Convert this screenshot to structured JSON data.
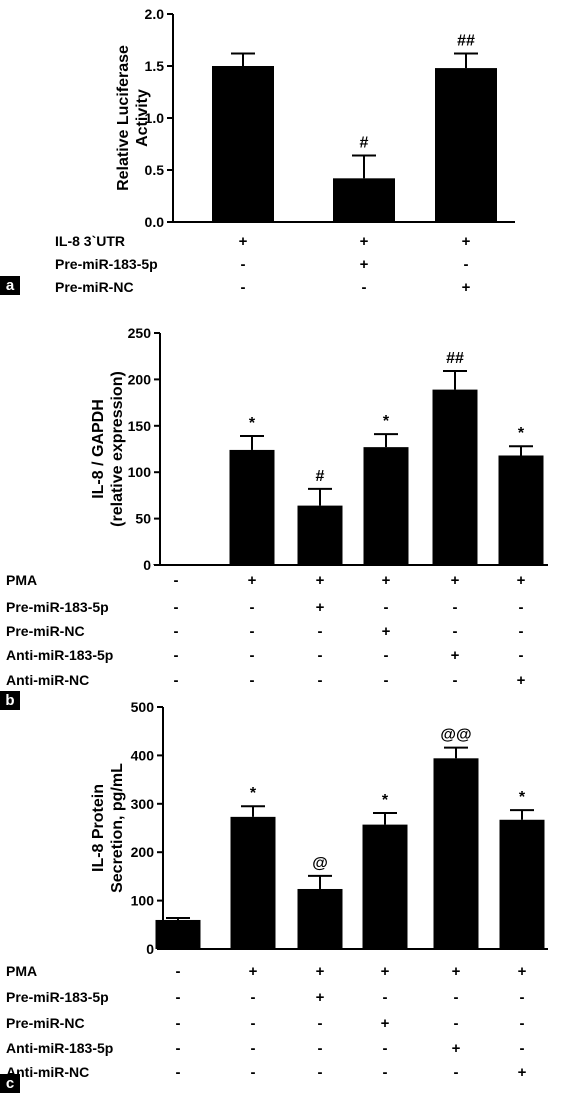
{
  "chart_data": [
    {
      "type": "bar",
      "panel": "a",
      "ylabel_lines": [
        "Relative Luciferase",
        "Activity"
      ],
      "ylim": [
        0,
        2.0
      ],
      "yticks": [
        "0.0",
        "0.5",
        "1.0",
        "1.5",
        "2.0"
      ],
      "values": [
        1.5,
        0.42,
        1.48
      ],
      "errors": [
        0.12,
        0.22,
        0.14
      ],
      "annotations": [
        "",
        "#",
        "##"
      ],
      "conditions": [
        {
          "label": "IL-8 3`UTR",
          "signs": [
            "+",
            "+",
            "+"
          ]
        },
        {
          "label": "Pre-miR-183-5p",
          "signs": [
            "-",
            "+",
            "-"
          ]
        },
        {
          "label": "Pre-miR-NC",
          "signs": [
            "-",
            "-",
            "+"
          ]
        }
      ]
    },
    {
      "type": "bar",
      "panel": "b",
      "ylabel_lines": [
        "IL-8 / GAPDH",
        "(relative expression)"
      ],
      "ylim": [
        0,
        250
      ],
      "yticks": [
        "0",
        "50",
        "100",
        "150",
        "200",
        "250"
      ],
      "values": [
        1,
        124,
        64,
        127,
        189,
        118
      ],
      "errors": [
        0,
        15,
        18,
        14,
        20,
        10
      ],
      "annotations": [
        "",
        "*",
        "#",
        "*",
        "##",
        "*"
      ],
      "conditions": [
        {
          "label": "PMA",
          "signs": [
            "-",
            "+",
            "+",
            "+",
            "+",
            "+"
          ]
        },
        {
          "label": "Pre-miR-183-5p",
          "signs": [
            "-",
            "-",
            "+",
            "-",
            "-",
            "-"
          ]
        },
        {
          "label": "Pre-miR-NC",
          "signs": [
            "-",
            "-",
            "-",
            "+",
            "-",
            "-"
          ]
        },
        {
          "label": "Anti-miR-183-5p",
          "signs": [
            "-",
            "-",
            "-",
            "-",
            "+",
            "-"
          ]
        },
        {
          "label": "Anti-miR-NC",
          "signs": [
            "-",
            "-",
            "-",
            "-",
            "-",
            "+"
          ]
        }
      ]
    },
    {
      "type": "bar",
      "panel": "c",
      "ylabel_lines": [
        "IL-8 Protein",
        "Secretion, pg/mL"
      ],
      "ylim": [
        0,
        500
      ],
      "yticks": [
        "0",
        "100",
        "200",
        "300",
        "400",
        "500"
      ],
      "values": [
        60,
        273,
        124,
        257,
        394,
        267
      ],
      "errors": [
        4,
        22,
        27,
        24,
        22,
        20
      ],
      "annotations": [
        "",
        "*",
        "@",
        "*",
        "@@",
        "*"
      ],
      "conditions": [
        {
          "label": "PMA",
          "signs": [
            "-",
            "+",
            "+",
            "+",
            "+",
            "+"
          ]
        },
        {
          "label": "Pre-miR-183-5p",
          "signs": [
            "-",
            "-",
            "+",
            "-",
            "-",
            "-"
          ]
        },
        {
          "label": "Pre-miR-NC",
          "signs": [
            "-",
            "-",
            "-",
            "+",
            "-",
            "-"
          ]
        },
        {
          "label": "Anti-miR-183-5p",
          "signs": [
            "-",
            "-",
            "-",
            "-",
            "+",
            "-"
          ]
        },
        {
          "label": "Anti-miR-NC",
          "signs": [
            "-",
            "-",
            "-",
            "-",
            "-",
            "+"
          ]
        }
      ]
    }
  ],
  "colors": {
    "bar": "#000000",
    "panel_label_bg": "#000000",
    "panel_label_text": "#ffffff"
  }
}
